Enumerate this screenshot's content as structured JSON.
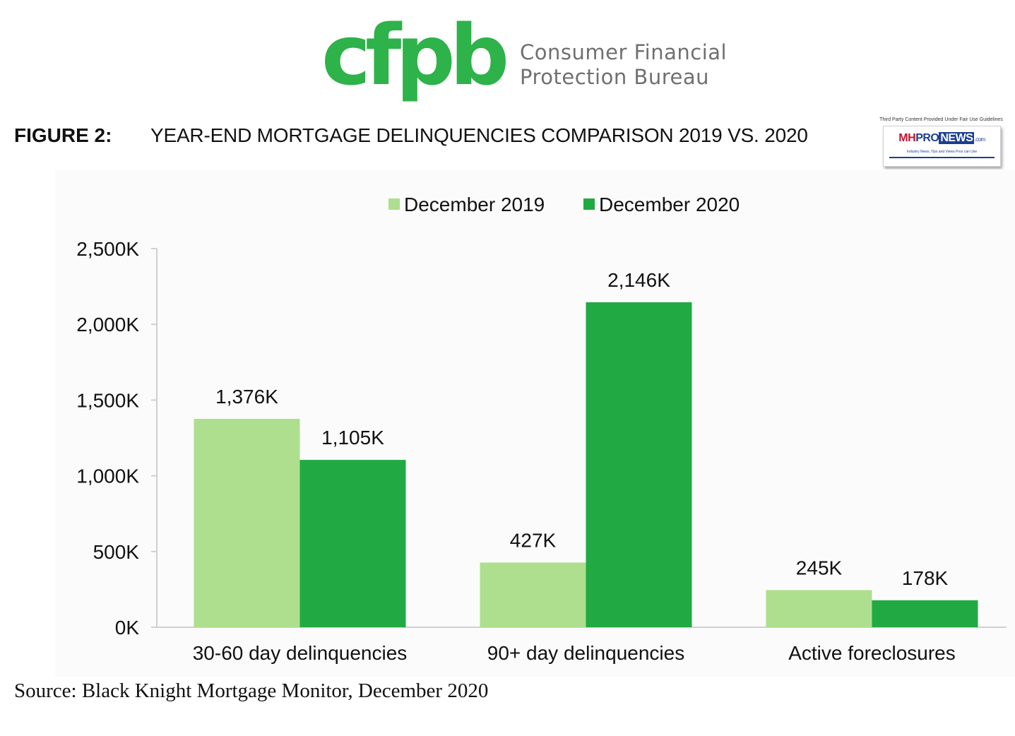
{
  "header": {
    "logo_text": "cfpb",
    "logo_subtitle": [
      "Consumer Financial",
      "Protection Bureau"
    ],
    "figure_label": "FIGURE 2:",
    "figure_title": "YEAR-END MORTGAGE DELINQUENCIES COMPARISON 2019 VS. 2020"
  },
  "badge": {
    "note": "Third Party Content Provided Under Fair Use Guidelines",
    "brand_mh": "MH",
    "brand_pro": "PRO",
    "brand_news": "NEWS",
    "brand_com": ".com",
    "tagline": "Industry News, Tips and Views Pros can Use"
  },
  "chart_data": {
    "type": "bar",
    "categories": [
      "30-60 day delinquencies",
      "90+ day delinquencies",
      "Active foreclosures"
    ],
    "series": [
      {
        "name": "December 2019",
        "color": "#addf8e",
        "values": [
          1376,
          427,
          245
        ],
        "labels": [
          "1,376K",
          "427K",
          "245K"
        ]
      },
      {
        "name": "December 2020",
        "color": "#21aa43",
        "values": [
          1105,
          2146,
          178
        ],
        "labels": [
          "1,105K",
          "2,146K",
          "178K"
        ]
      }
    ],
    "ylim": [
      0,
      2500
    ],
    "yticks": [
      0,
      500,
      1000,
      1500,
      2000,
      2500
    ],
    "ytick_labels": [
      "0K",
      "500K",
      "1,000K",
      "1,500K",
      "2,000K",
      "2,500K"
    ],
    "legend_position": "top-center",
    "grid": false
  },
  "footer": {
    "source": "Source: Black Knight Mortgage Monitor, December 2020"
  }
}
